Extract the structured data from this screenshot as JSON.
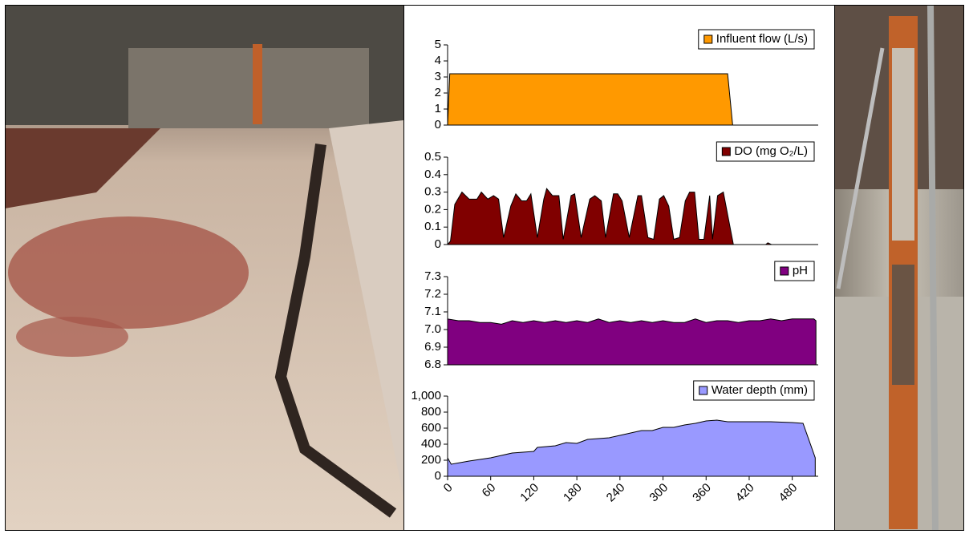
{
  "chart_data": [
    {
      "type": "area",
      "x": [
        0,
        3,
        390,
        397,
        515
      ],
      "xlim": [
        0,
        515
      ],
      "ylim": [
        0,
        5
      ],
      "yticks": [
        0,
        1,
        2,
        3,
        4,
        5
      ],
      "legend": "upper right",
      "series": [
        {
          "name": "Influent flow (L/s)",
          "color": "#ff9900",
          "values": [
            0,
            3.2,
            3.2,
            0,
            0
          ]
        }
      ]
    },
    {
      "type": "area",
      "x": [
        0,
        4,
        10,
        20,
        30,
        41,
        47,
        56,
        64,
        71,
        78,
        88,
        95,
        103,
        110,
        116,
        125,
        134,
        138,
        146,
        155,
        161,
        172,
        177,
        186,
        198,
        205,
        214,
        220,
        231,
        237,
        243,
        253,
        265,
        270,
        279,
        287,
        295,
        301,
        308,
        315,
        323,
        331,
        337,
        344,
        350,
        357,
        365,
        369,
        376,
        384,
        391,
        398,
        443,
        446,
        451,
        493,
        515
      ],
      "xlim": [
        0,
        515
      ],
      "ylim": [
        0,
        0.5
      ],
      "yticks": [
        0,
        0.1,
        0.2,
        0.3,
        0.4,
        0.5
      ],
      "legend": "upper right",
      "series": [
        {
          "name": "DO (mg O₂/L)",
          "color": "#800000",
          "values": [
            0,
            0.02,
            0.23,
            0.3,
            0.26,
            0.26,
            0.3,
            0.26,
            0.28,
            0.26,
            0.04,
            0.22,
            0.29,
            0.25,
            0.25,
            0.29,
            0.04,
            0.26,
            0.32,
            0.28,
            0.28,
            0.03,
            0.28,
            0.29,
            0.04,
            0.26,
            0.28,
            0.25,
            0.04,
            0.29,
            0.29,
            0.25,
            0.04,
            0.28,
            0.28,
            0.04,
            0.03,
            0.26,
            0.28,
            0.22,
            0.03,
            0.04,
            0.25,
            0.3,
            0.3,
            0.03,
            0.03,
            0.28,
            0.03,
            0.28,
            0.3,
            0.15,
            0,
            0,
            0.01,
            0,
            0,
            0
          ]
        }
      ]
    },
    {
      "type": "area",
      "x": [
        0,
        15,
        30,
        45,
        60,
        75,
        90,
        105,
        120,
        135,
        150,
        165,
        180,
        195,
        210,
        225,
        240,
        255,
        270,
        285,
        300,
        315,
        330,
        345,
        360,
        375,
        390,
        405,
        420,
        435,
        450,
        465,
        480,
        495,
        510,
        513
      ],
      "xlim": [
        0,
        515
      ],
      "ylim": [
        6.8,
        7.3
      ],
      "yticks": [
        6.8,
        6.9,
        {
          "value": 7,
          "label": "7.0"
        },
        7.1,
        7.2,
        7.3
      ],
      "legend": "upper right",
      "series": [
        {
          "name": "pH",
          "color": "#800080",
          "values": [
            7.06,
            7.05,
            7.05,
            7.04,
            7.04,
            7.03,
            7.05,
            7.04,
            7.05,
            7.04,
            7.05,
            7.04,
            7.05,
            7.04,
            7.06,
            7.04,
            7.05,
            7.04,
            7.05,
            7.04,
            7.05,
            7.04,
            7.04,
            7.06,
            7.04,
            7.05,
            7.05,
            7.04,
            7.05,
            7.05,
            7.06,
            7.05,
            7.06,
            7.06,
            7.06,
            7.05
          ]
        }
      ]
    },
    {
      "type": "area",
      "x": [
        0,
        5,
        30,
        60,
        75,
        90,
        120,
        125,
        150,
        165,
        180,
        195,
        210,
        225,
        240,
        255,
        270,
        285,
        300,
        315,
        330,
        345,
        360,
        375,
        390,
        420,
        450,
        480,
        495,
        512
      ],
      "xlim": [
        0,
        515
      ],
      "ylim": [
        0,
        1000
      ],
      "yticks": [
        0,
        200,
        400,
        600,
        800,
        {
          "value": 1000,
          "label": "1,000"
        }
      ],
      "xticks": [
        0,
        60,
        120,
        180,
        240,
        300,
        360,
        420,
        480
      ],
      "legend": "upper right",
      "series": [
        {
          "name": "Water depth (mm)",
          "color": "#9999ff",
          "values": [
            230,
            150,
            190,
            230,
            260,
            290,
            310,
            360,
            380,
            420,
            410,
            460,
            470,
            480,
            510,
            540,
            570,
            570,
            610,
            610,
            640,
            660,
            690,
            700,
            680,
            680,
            680,
            670,
            660,
            230
          ]
        }
      ]
    }
  ]
}
